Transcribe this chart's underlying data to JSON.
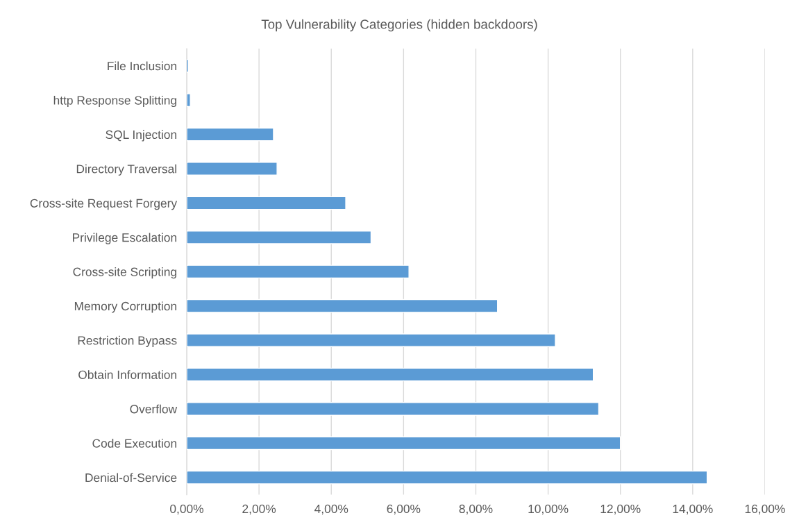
{
  "chart_data": {
    "type": "bar",
    "orientation": "horizontal",
    "title": "Top Vulnerability Categories (hidden backdoors)",
    "categories": [
      "File Inclusion",
      "http Response Splitting",
      "SQL Injection",
      "Directory Traversal",
      "Cross-site Request Forgery",
      "Privilege Escalation",
      "Cross-site Scripting",
      "Memory Corruption",
      "Restriction Bypass",
      "Obtain Information",
      "Overflow",
      "Code Execution",
      "Denial-of-Service"
    ],
    "values": [
      0.05,
      0.1,
      2.4,
      2.5,
      4.4,
      5.1,
      6.15,
      8.6,
      10.2,
      11.25,
      11.4,
      12.0,
      14.4
    ],
    "color": "#5b9bd5",
    "xlim": [
      0,
      16
    ],
    "xticks": [
      {
        "value": 0,
        "label": "0,00%"
      },
      {
        "value": 2,
        "label": "2,00%"
      },
      {
        "value": 4,
        "label": "4,00%"
      },
      {
        "value": 6,
        "label": "6,00%"
      },
      {
        "value": 8,
        "label": "8,00%"
      },
      {
        "value": 10,
        "label": "10,00%"
      },
      {
        "value": 12,
        "label": "12,00%"
      },
      {
        "value": 14,
        "label": "14,00%"
      },
      {
        "value": 16,
        "label": "16,00%"
      }
    ],
    "grid": "x"
  }
}
